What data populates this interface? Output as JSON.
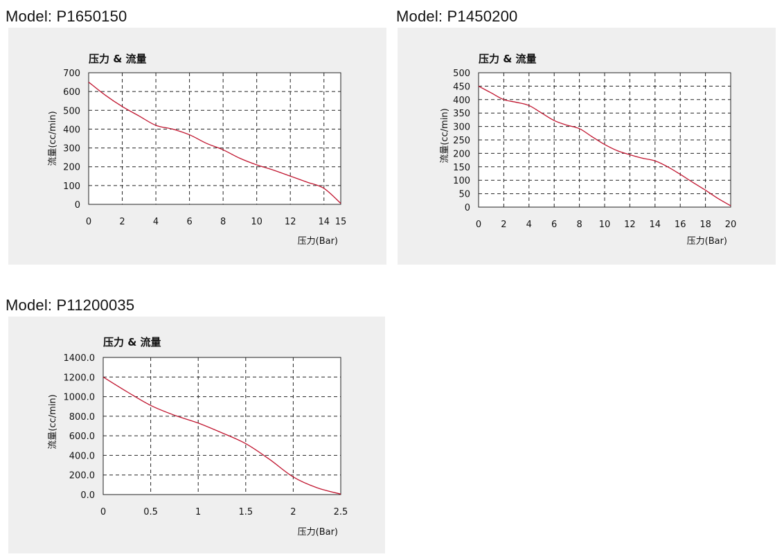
{
  "chart_data": [
    {
      "type": "line",
      "model": "Model: P1650150",
      "title": "压力 & 流量",
      "xlabel": "压力(Bar)",
      "ylabel": "流量(cc/min)",
      "xlim": [
        0,
        15
      ],
      "ylim": [
        0,
        700
      ],
      "xticks": [
        0,
        2,
        4,
        6,
        8,
        10,
        12,
        14,
        15
      ],
      "xtick_labels": [
        "0",
        "2",
        "4",
        "6",
        "8",
        "10",
        "12",
        "14",
        "15"
      ],
      "yticks": [
        0,
        100,
        200,
        300,
        400,
        500,
        600,
        700
      ],
      "ytick_labels": [
        "0",
        "100",
        "200",
        "300",
        "400",
        "500",
        "600",
        "700"
      ],
      "grid": true,
      "line_color": "#c0142e",
      "series": [
        {
          "x": [
            0,
            1,
            2,
            3,
            4,
            5,
            6,
            7,
            8,
            9,
            10,
            11,
            12,
            13,
            14,
            15
          ],
          "y": [
            650,
            580,
            520,
            470,
            420,
            400,
            370,
            325,
            290,
            245,
            210,
            182,
            150,
            118,
            85,
            5
          ]
        }
      ]
    },
    {
      "type": "line",
      "model": "Model: P1450200",
      "title": "压力 & 流量",
      "xlabel": "压力(Bar)",
      "ylabel": "流量(cc/min)",
      "xlim": [
        0,
        20
      ],
      "ylim": [
        0,
        500
      ],
      "xticks": [
        0,
        2,
        4,
        6,
        8,
        10,
        12,
        14,
        16,
        18,
        20
      ],
      "xtick_labels": [
        "0",
        "2",
        "4",
        "6",
        "8",
        "10",
        "12",
        "14",
        "16",
        "18",
        "20"
      ],
      "yticks": [
        0,
        50,
        100,
        150,
        200,
        250,
        300,
        350,
        400,
        450,
        500
      ],
      "ytick_labels": [
        "0",
        "50",
        "100",
        "150",
        "200",
        "250",
        "300",
        "350",
        "400",
        "450",
        "500"
      ],
      "grid": true,
      "line_color": "#c0142e",
      "series": [
        {
          "x": [
            0,
            1,
            2,
            3,
            4,
            5,
            6,
            7,
            8,
            9,
            10,
            11,
            12,
            13,
            14,
            15,
            16,
            17,
            18,
            19,
            20
          ],
          "y": [
            450,
            425,
            400,
            390,
            378,
            350,
            322,
            305,
            292,
            262,
            233,
            210,
            195,
            182,
            172,
            150,
            122,
            92,
            63,
            32,
            5
          ]
        }
      ]
    },
    {
      "type": "line",
      "model": "Model: P11200035",
      "title": "压力 & 流量",
      "xlabel": "压力(Bar)",
      "ylabel": "流量(cc/min)",
      "xlim": [
        0,
        2.5
      ],
      "ylim": [
        0,
        1400
      ],
      "xticks": [
        0,
        0.5,
        1,
        1.5,
        2,
        2.5
      ],
      "xtick_labels": [
        "0",
        "0.5",
        "1",
        "1.5",
        "2",
        "2.5"
      ],
      "yticks": [
        0,
        200,
        400,
        600,
        800,
        1000,
        1200,
        1400
      ],
      "ytick_labels": [
        "0.0",
        "200.0",
        "400.0",
        "600.0",
        "800.0",
        "1000.0",
        "1200.0",
        "1400.0"
      ],
      "grid": true,
      "line_color": "#c0142e",
      "series": [
        {
          "x": [
            0,
            0.25,
            0.5,
            0.75,
            1,
            1.25,
            1.5,
            1.75,
            2,
            2.25,
            2.5
          ],
          "y": [
            1200,
            1050,
            910,
            810,
            730,
            630,
            520,
            360,
            180,
            70,
            5
          ]
        }
      ]
    }
  ]
}
